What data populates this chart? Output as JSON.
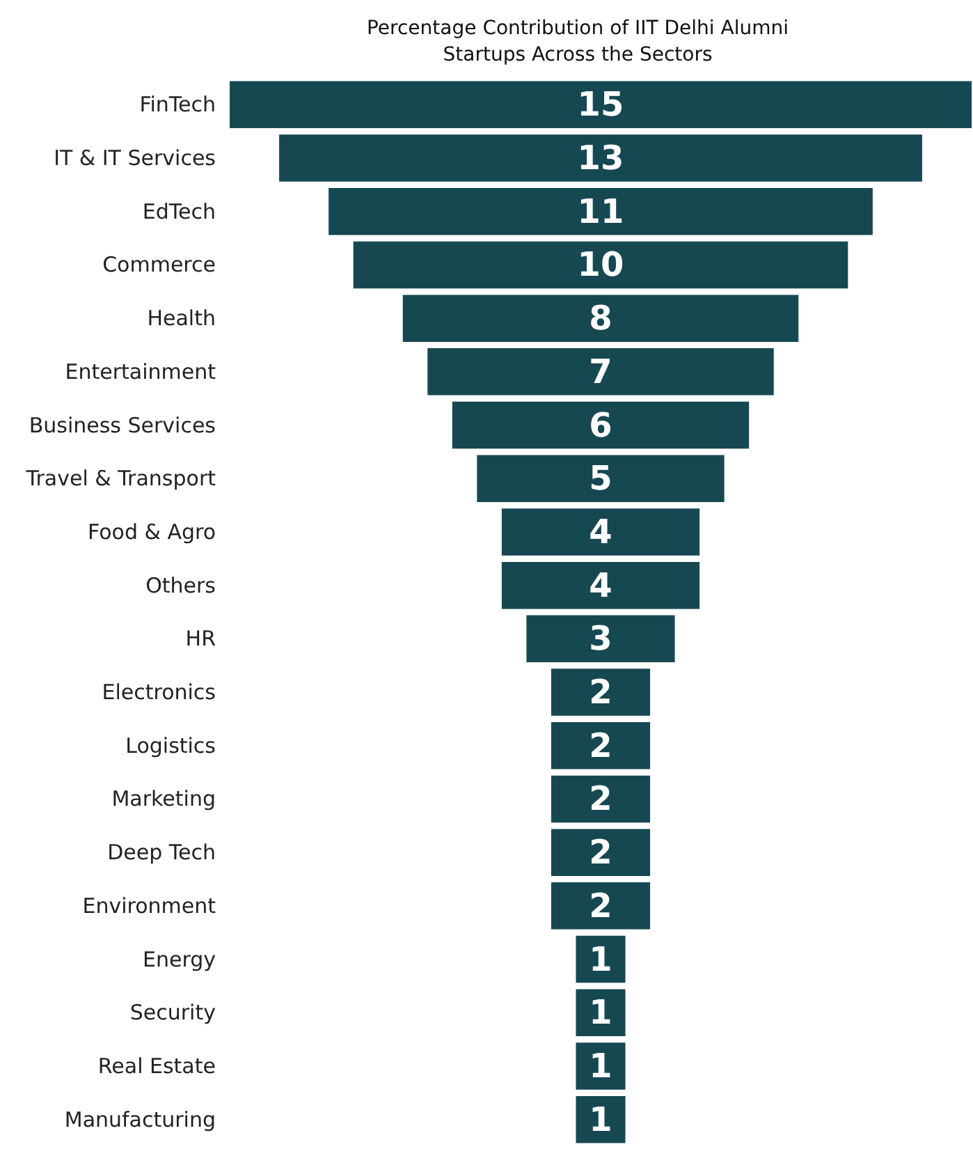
{
  "chart_data": {
    "type": "other",
    "title": "Percentage Contribution of IIT Delhi Alumni\nStartups Across the Sectors",
    "categories": [
      "FinTech",
      "IT & IT Services",
      "EdTech",
      "Commerce",
      "Health",
      "Entertainment",
      "Business Services",
      "Travel & Transport",
      "Food & Agro",
      "Others",
      "HR",
      "Electronics",
      "Logistics",
      "Marketing",
      "Deep Tech",
      "Environment",
      "Energy",
      "Security",
      "Real Estate",
      "Manufacturing"
    ],
    "values": [
      15,
      13,
      11,
      10,
      8,
      7,
      6,
      5,
      4,
      4,
      3,
      2,
      2,
      2,
      2,
      2,
      1,
      1,
      1,
      1
    ],
    "color": "#164852",
    "data_labels": true
  }
}
